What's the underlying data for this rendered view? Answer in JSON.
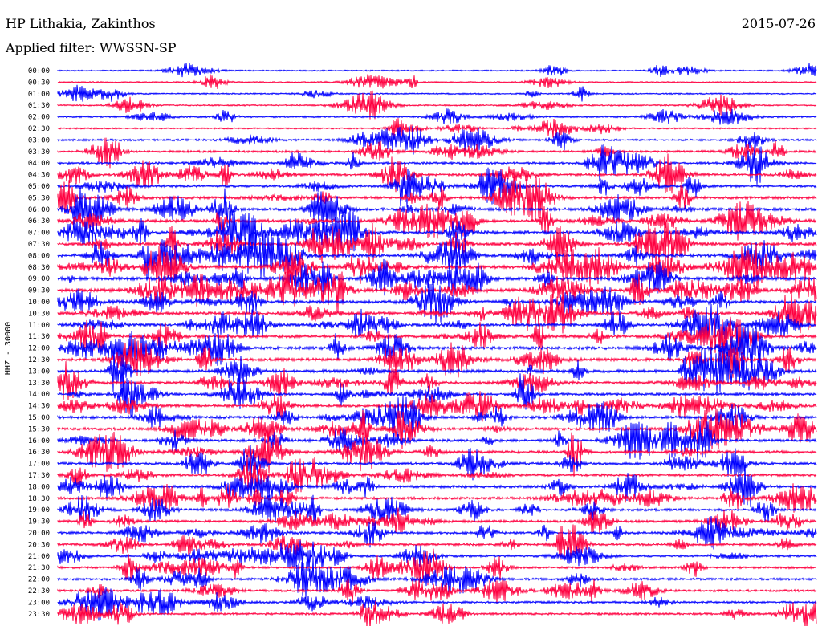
{
  "header": {
    "station_title": "HP Lithakia, Zakinthos",
    "filter_label": "Applied filter: WWSSN-SP",
    "date": "2015-07-26"
  },
  "chart_data": {
    "type": "line",
    "title": "HP Lithakia, Zakinthos",
    "subtitle": "Applied filter: WWSSN-SP",
    "ylabel": "HHZ - 30000",
    "ytick_labels": [
      "00:00",
      "00:30",
      "01:00",
      "01:30",
      "02:00",
      "02:30",
      "03:00",
      "03:30",
      "04:00",
      "04:30",
      "05:00",
      "05:30",
      "06:00",
      "06:30",
      "07:00",
      "07:30",
      "08:00",
      "08:30",
      "09:00",
      "09:30",
      "10:00",
      "10:30",
      "11:00",
      "11:30",
      "12:00",
      "12:30",
      "13:00",
      "13:30",
      "14:00",
      "14:30",
      "15:00",
      "15:30",
      "16:00",
      "16:30",
      "17:00",
      "17:30",
      "18:00",
      "18:30",
      "19:00",
      "19:30",
      "20:00",
      "20:30",
      "21:00",
      "21:30",
      "22:00",
      "22:30",
      "23:00",
      "23:30"
    ],
    "trace_colors": [
      "#0000ff",
      "#ff0040"
    ],
    "activity_level": [
      0.15,
      0.15,
      0.15,
      0.2,
      0.3,
      0.2,
      0.4,
      0.5,
      0.5,
      0.6,
      0.6,
      0.7,
      0.7,
      0.8,
      0.9,
      0.9,
      0.9,
      0.9,
      0.9,
      0.9,
      0.8,
      0.8,
      0.8,
      0.8,
      0.8,
      0.8,
      0.8,
      0.7,
      0.7,
      0.7,
      0.7,
      0.7,
      0.7,
      0.7,
      0.6,
      0.6,
      0.7,
      0.6,
      0.6,
      0.6,
      0.6,
      0.6,
      0.5,
      0.5,
      0.5,
      0.5,
      0.5,
      0.5
    ],
    "grid": false,
    "legend": "none"
  }
}
